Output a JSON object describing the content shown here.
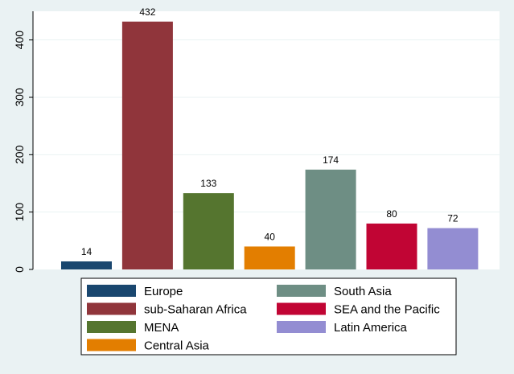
{
  "chart_data": {
    "type": "bar",
    "categories": [
      "Europe",
      "sub-Saharan Africa",
      "MENA",
      "Central Asia",
      "South Asia",
      "SEA and the Pacific",
      "Latin America"
    ],
    "values": [
      14,
      432,
      133,
      40,
      174,
      80,
      72
    ],
    "data_labels": [
      "14",
      "432",
      "133",
      "40",
      "174",
      "80",
      "72"
    ],
    "colors": [
      "#1a476f",
      "#90353b",
      "#55752f",
      "#e37e00",
      "#6e8e84",
      "#c10534",
      "#938dd2"
    ],
    "ylim": [
      0,
      450
    ],
    "yticks": [
      0,
      100,
      200,
      300,
      400
    ],
    "ytick_labels": [
      "0",
      "100",
      "200",
      "300",
      "400"
    ],
    "legend_position": "bottom",
    "grid": true,
    "legend": {
      "left": [
        "Europe",
        "sub-Saharan Africa",
        "MENA",
        "Central Asia"
      ],
      "right": [
        "South Asia",
        "SEA and the Pacific",
        "Latin America"
      ]
    }
  }
}
